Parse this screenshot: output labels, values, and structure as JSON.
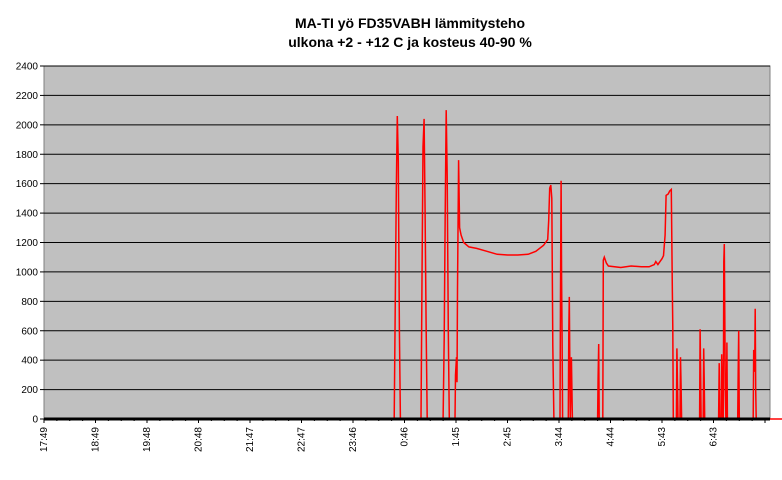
{
  "chart_data": {
    "type": "line",
    "title": "MA-TI yö FD35VABH lämmitysteho",
    "subtitle": "ulkona +2 - +12 C ja kosteus 40-90 %",
    "xlabel": "",
    "ylabel": "",
    "ylim": [
      0,
      2400
    ],
    "yticks": [
      0,
      200,
      400,
      600,
      800,
      1000,
      1200,
      1400,
      1600,
      1800,
      2000,
      2200,
      2400
    ],
    "xticks": [
      "17:49",
      "18:49",
      "19:48",
      "20:48",
      "21:47",
      "22:47",
      "23:46",
      "0:46",
      "1:45",
      "2:45",
      "3:44",
      "4:44",
      "5:43",
      "6:43"
    ],
    "grid": "horizontal",
    "legend": "none",
    "colors": {
      "series": "#ff0000",
      "plot_bg": "#c0c0c0",
      "gridline": "#000000"
    },
    "series": [
      {
        "points": [
          [
            0,
            0
          ],
          [
            6.8,
            0
          ],
          [
            6.82,
            740
          ],
          [
            6.84,
            1550
          ],
          [
            6.86,
            2060
          ],
          [
            6.88,
            1750
          ],
          [
            6.9,
            600
          ],
          [
            6.92,
            0
          ],
          [
            7.32,
            0
          ],
          [
            7.34,
            950
          ],
          [
            7.36,
            1850
          ],
          [
            7.38,
            2040
          ],
          [
            7.4,
            1400
          ],
          [
            7.42,
            650
          ],
          [
            7.44,
            0
          ],
          [
            7.75,
            0
          ],
          [
            7.77,
            550
          ],
          [
            7.79,
            1400
          ],
          [
            7.81,
            2100
          ],
          [
            7.83,
            1650
          ],
          [
            7.85,
            600
          ],
          [
            7.87,
            0
          ],
          [
            7.98,
            0
          ],
          [
            7.99,
            300
          ],
          [
            8.01,
            420
          ],
          [
            8.02,
            250
          ],
          [
            8.03,
            880
          ],
          [
            8.05,
            1760
          ],
          [
            8.07,
            1300
          ],
          [
            8.1,
            1250
          ],
          [
            8.15,
            1200
          ],
          [
            8.25,
            1170
          ],
          [
            8.4,
            1160
          ],
          [
            8.6,
            1140
          ],
          [
            8.8,
            1120
          ],
          [
            9.0,
            1115
          ],
          [
            9.2,
            1115
          ],
          [
            9.4,
            1120
          ],
          [
            9.55,
            1140
          ],
          [
            9.7,
            1180
          ],
          [
            9.78,
            1220
          ],
          [
            9.8,
            1350
          ],
          [
            9.82,
            1570
          ],
          [
            9.84,
            1590
          ],
          [
            9.86,
            1500
          ],
          [
            9.88,
            500
          ],
          [
            9.9,
            0
          ],
          [
            10.02,
            0
          ],
          [
            10.03,
            850
          ],
          [
            10.04,
            1620
          ],
          [
            10.05,
            950
          ],
          [
            10.06,
            550
          ],
          [
            10.07,
            0
          ],
          [
            10.18,
            0
          ],
          [
            10.19,
            600
          ],
          [
            10.2,
            830
          ],
          [
            10.21,
            400
          ],
          [
            10.22,
            0
          ],
          [
            10.24,
            420
          ],
          [
            10.26,
            0
          ],
          [
            10.75,
            0
          ],
          [
            10.76,
            280
          ],
          [
            10.77,
            510
          ],
          [
            10.78,
            0
          ],
          [
            10.85,
            0
          ],
          [
            10.86,
            1080
          ],
          [
            10.88,
            1100
          ],
          [
            10.92,
            1060
          ],
          [
            10.96,
            1040
          ],
          [
            11.2,
            1030
          ],
          [
            11.4,
            1040
          ],
          [
            11.6,
            1035
          ],
          [
            11.75,
            1035
          ],
          [
            11.85,
            1050
          ],
          [
            11.88,
            1070
          ],
          [
            11.92,
            1050
          ],
          [
            12.0,
            1090
          ],
          [
            12.03,
            1110
          ],
          [
            12.06,
            1250
          ],
          [
            12.08,
            1520
          ],
          [
            12.12,
            1530
          ],
          [
            12.15,
            1550
          ],
          [
            12.18,
            1560
          ],
          [
            12.2,
            900
          ],
          [
            12.21,
            620
          ],
          [
            12.22,
            0
          ],
          [
            12.28,
            0
          ],
          [
            12.29,
            480
          ],
          [
            12.3,
            230
          ],
          [
            12.31,
            0
          ],
          [
            12.35,
            0
          ],
          [
            12.36,
            420
          ],
          [
            12.37,
            220
          ],
          [
            12.38,
            0
          ],
          [
            12.73,
            0
          ],
          [
            12.74,
            610
          ],
          [
            12.75,
            350
          ],
          [
            12.76,
            0
          ],
          [
            12.8,
            0
          ],
          [
            12.81,
            480
          ],
          [
            12.82,
            270
          ],
          [
            12.83,
            0
          ],
          [
            13.1,
            0
          ],
          [
            13.11,
            380
          ],
          [
            13.12,
            0
          ],
          [
            13.15,
            0
          ],
          [
            13.16,
            440
          ],
          [
            13.17,
            230
          ],
          [
            13.18,
            0
          ],
          [
            13.19,
            0
          ],
          [
            13.2,
            1070
          ],
          [
            13.21,
            1190
          ],
          [
            13.22,
            700
          ],
          [
            13.23,
            200
          ],
          [
            13.24,
            0
          ],
          [
            13.25,
            0
          ],
          [
            13.26,
            520
          ],
          [
            13.27,
            0
          ],
          [
            13.47,
            0
          ],
          [
            13.48,
            330
          ],
          [
            13.49,
            600
          ],
          [
            13.5,
            0
          ],
          [
            13.77,
            0
          ],
          [
            13.78,
            470
          ],
          [
            13.8,
            320
          ],
          [
            13.81,
            750
          ],
          [
            13.82,
            200
          ],
          [
            13.83,
            0
          ],
          [
            14.4,
            0
          ]
        ]
      }
    ]
  }
}
